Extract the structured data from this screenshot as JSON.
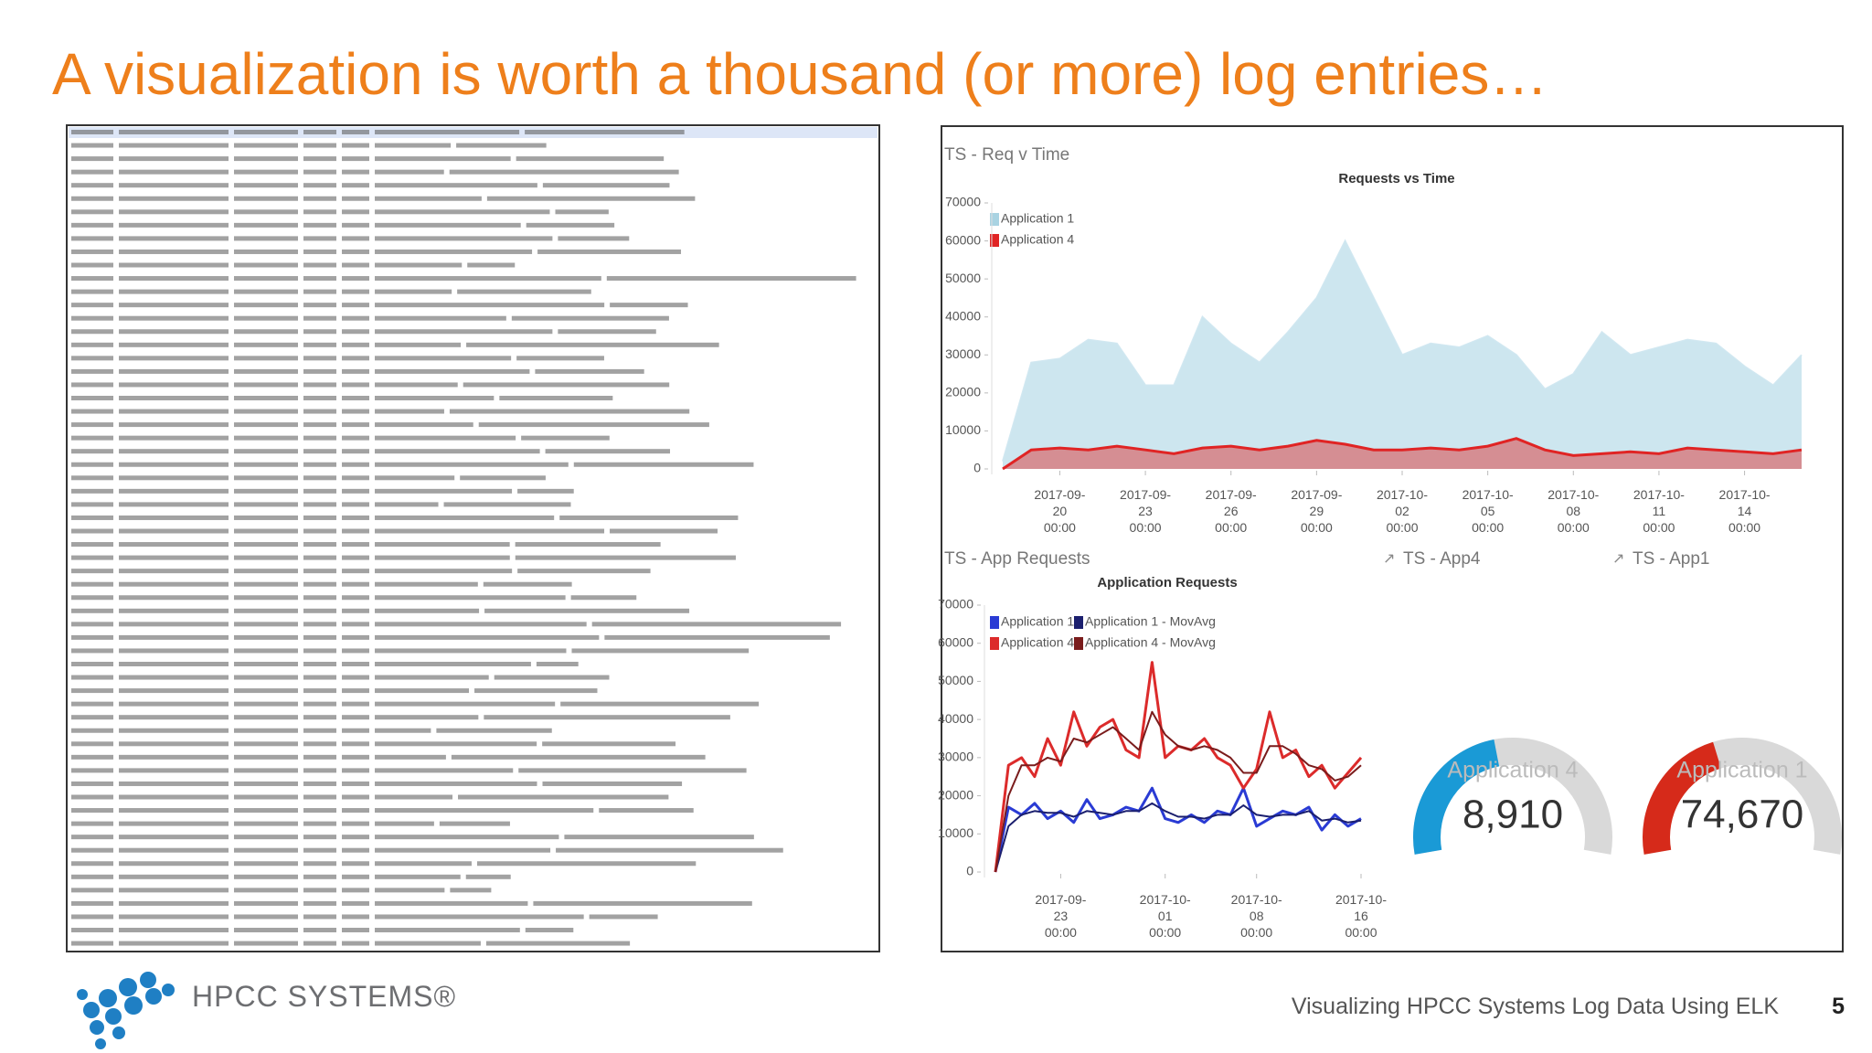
{
  "title": "A visualization is worth a thousand (or more) log entries…",
  "footer": {
    "logo": "HPCC SYSTEMS®",
    "text": "Visualizing HPCC Systems Log Data Using ELK",
    "page": "5"
  },
  "chart_data": [
    {
      "type": "area",
      "panel_title": "TS - Req v Time",
      "title": "Requests vs Time",
      "x": [
        "2017-09-18 00:00",
        "2017-09-19 00:00",
        "2017-09-20 00:00",
        "2017-09-21 00:00",
        "2017-09-22 00:00",
        "2017-09-23 00:00",
        "2017-09-24 00:00",
        "2017-09-25 00:00",
        "2017-09-26 00:00",
        "2017-09-27 00:00",
        "2017-09-28 00:00",
        "2017-09-29 00:00",
        "2017-09-30 00:00",
        "2017-10-01 00:00",
        "2017-10-02 00:00",
        "2017-10-03 00:00",
        "2017-10-04 00:00",
        "2017-10-05 00:00",
        "2017-10-06 00:00",
        "2017-10-07 00:00",
        "2017-10-08 00:00",
        "2017-10-09 00:00",
        "2017-10-10 00:00",
        "2017-10-11 00:00",
        "2017-10-12 00:00",
        "2017-10-13 00:00",
        "2017-10-14 00:00",
        "2017-10-15 00:00",
        "2017-10-16 00:00"
      ],
      "series": [
        {
          "name": "Application 1",
          "color": "#cde6ef",
          "values": [
            2000,
            28000,
            29000,
            34000,
            33000,
            22000,
            22000,
            40000,
            33000,
            28000,
            36000,
            45000,
            60000,
            45000,
            30000,
            33000,
            32000,
            35000,
            30000,
            21000,
            25000,
            36000,
            30000,
            32000,
            34000,
            33000,
            27000,
            22000,
            30000
          ]
        },
        {
          "name": "Application 4",
          "color": "#e02424",
          "values": [
            0,
            5000,
            5500,
            5000,
            6000,
            5000,
            4000,
            5500,
            6000,
            5000,
            6000,
            7500,
            6500,
            5000,
            5000,
            5500,
            5000,
            6000,
            8000,
            5000,
            3500,
            4000,
            4500,
            4000,
            5500,
            5000,
            4500,
            4000,
            5000
          ]
        }
      ],
      "xticks": [
        "2017-09-20 00:00",
        "2017-09-23 00:00",
        "2017-09-26 00:00",
        "2017-09-29 00:00",
        "2017-10-02 00:00",
        "2017-10-05 00:00",
        "2017-10-08 00:00",
        "2017-10-11 00:00",
        "2017-10-14 00:00"
      ],
      "ylim": [
        0,
        70000
      ],
      "yticks": [
        0,
        10000,
        20000,
        30000,
        40000,
        50000,
        60000,
        70000
      ],
      "grid": false,
      "legend": "top-left"
    },
    {
      "type": "line",
      "panel_title": "TS - App Requests",
      "title": "Application Requests",
      "x": [
        "2017-09-18 00:00",
        "2017-09-19 00:00",
        "2017-09-20 00:00",
        "2017-09-21 00:00",
        "2017-09-22 00:00",
        "2017-09-23 00:00",
        "2017-09-24 00:00",
        "2017-09-25 00:00",
        "2017-09-26 00:00",
        "2017-09-27 00:00",
        "2017-09-28 00:00",
        "2017-09-29 00:00",
        "2017-09-30 00:00",
        "2017-10-01 00:00",
        "2017-10-02 00:00",
        "2017-10-03 00:00",
        "2017-10-04 00:00",
        "2017-10-05 00:00",
        "2017-10-06 00:00",
        "2017-10-07 00:00",
        "2017-10-08 00:00",
        "2017-10-09 00:00",
        "2017-10-10 00:00",
        "2017-10-11 00:00",
        "2017-10-12 00:00",
        "2017-10-13 00:00",
        "2017-10-14 00:00",
        "2017-10-15 00:00",
        "2017-10-16 00:00"
      ],
      "series": [
        {
          "name": "Application 1",
          "color": "#2a3bd4",
          "values": [
            0,
            17000,
            15000,
            18000,
            14000,
            16000,
            13000,
            19000,
            14000,
            15000,
            17000,
            16000,
            22000,
            14000,
            13000,
            15000,
            13000,
            16000,
            15000,
            22000,
            12000,
            14000,
            16000,
            15000,
            17000,
            11000,
            15000,
            12000,
            14000
          ]
        },
        {
          "name": "Application 1 - MovAvg",
          "color": "#1b1f6e",
          "values": [
            0,
            12000,
            15000,
            16000,
            15500,
            15500,
            14500,
            16000,
            15500,
            15000,
            16000,
            16000,
            18000,
            16000,
            14500,
            14500,
            14000,
            15000,
            15000,
            17500,
            15000,
            14500,
            15000,
            15000,
            16000,
            13500,
            14000,
            13000,
            13500
          ]
        },
        {
          "name": "Application 4",
          "color": "#dc2b2b",
          "values": [
            0,
            28000,
            30000,
            25000,
            35000,
            28000,
            42000,
            33000,
            38000,
            40000,
            32000,
            30000,
            55000,
            30000,
            33000,
            32000,
            35000,
            30000,
            28000,
            22000,
            27000,
            42000,
            30000,
            32000,
            25000,
            28000,
            22000,
            26000,
            30000
          ]
        },
        {
          "name": "Application 4 - MovAvg",
          "color": "#7a1c1c",
          "values": [
            0,
            20000,
            28000,
            28000,
            30000,
            29000,
            35000,
            34000,
            36000,
            38000,
            35000,
            32000,
            42000,
            36000,
            33000,
            32000,
            33000,
            32000,
            30000,
            26000,
            26000,
            33000,
            33000,
            31000,
            28000,
            27000,
            24000,
            25000,
            28000
          ]
        }
      ],
      "xticks": [
        "2017-09-23 00:00",
        "2017-10-01 00:00",
        "2017-10-08 00:00",
        "2017-10-16 00:00"
      ],
      "ylim": [
        0,
        70000
      ],
      "yticks": [
        0,
        10000,
        20000,
        30000,
        40000,
        50000,
        60000,
        70000
      ],
      "grid": false,
      "legend": "top-left"
    },
    {
      "type": "gauge",
      "panel_title": "TS - App4",
      "label": "Application 4",
      "values": [
        8910
      ],
      "value_labels": [
        "8,910"
      ],
      "ylim": [
        0,
        20000
      ],
      "color": "#1a9ad6"
    },
    {
      "type": "gauge",
      "panel_title": "TS - App1",
      "label": "Application 1",
      "values": [
        74670
      ],
      "value_labels": [
        "74,670"
      ],
      "ylim": [
        0,
        180000
      ],
      "color": "#d62a1a"
    }
  ]
}
